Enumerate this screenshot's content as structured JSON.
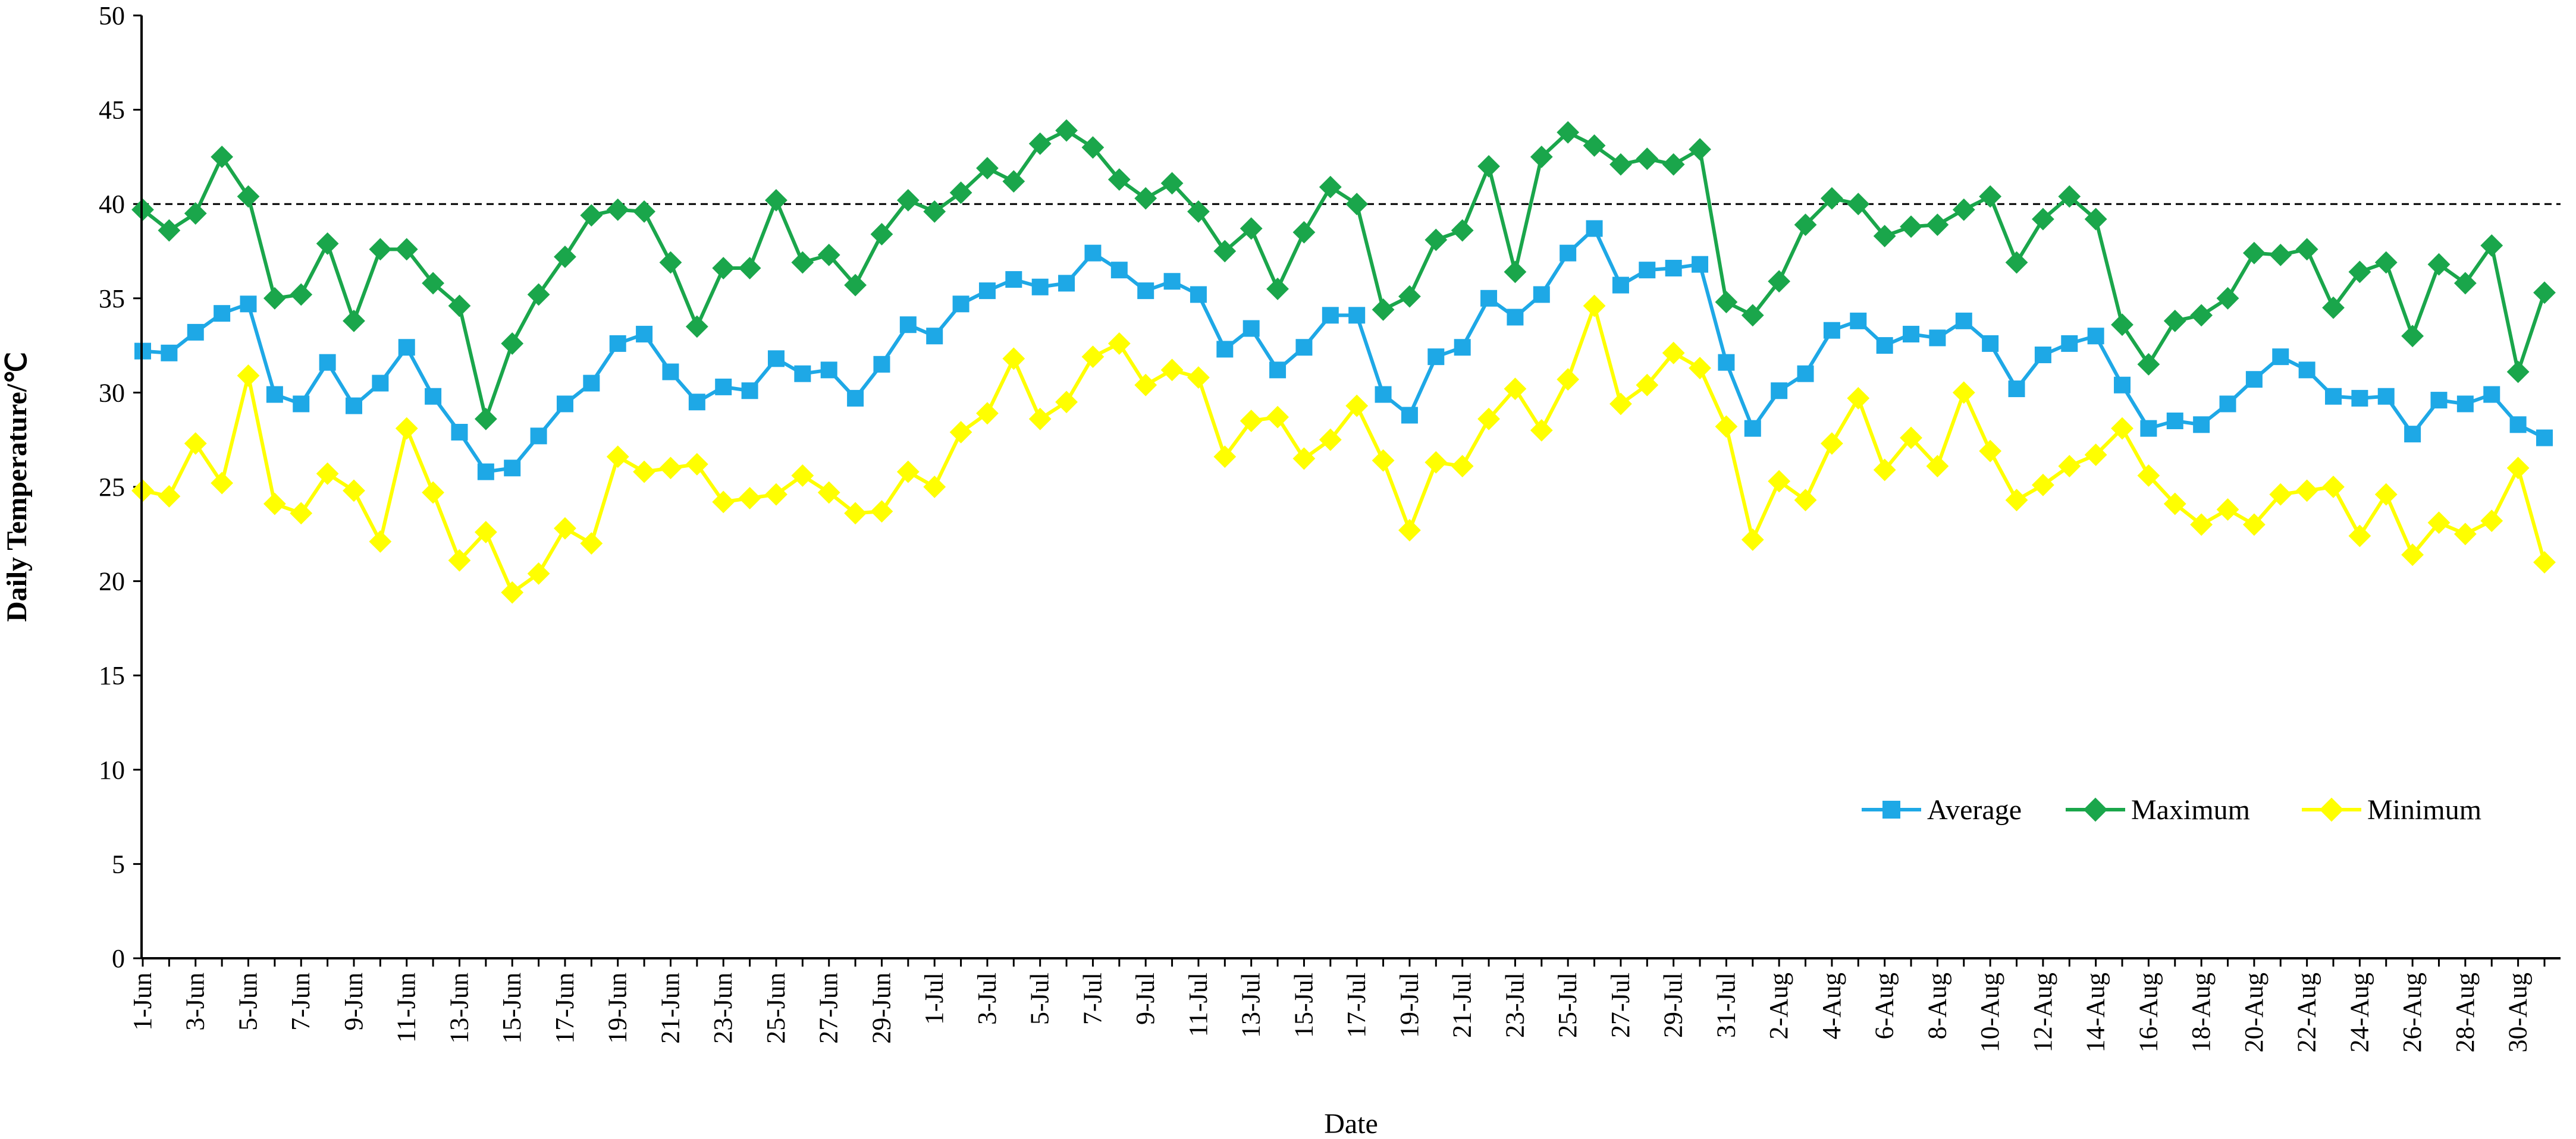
{
  "chart_data": {
    "type": "line",
    "title": "",
    "xlabel": "Date",
    "ylabel": "Daily Temperature/℃",
    "ylim": [
      0,
      50
    ],
    "yticks": [
      0,
      5,
      10,
      15,
      20,
      25,
      30,
      35,
      40,
      45,
      50
    ],
    "grid": false,
    "reference_line": {
      "y": 40,
      "style": "dashed",
      "color": "#000000"
    },
    "legend": {
      "position": "bottom-right",
      "entries": [
        "Average",
        "Maximum",
        "Minimum"
      ]
    },
    "x_label_every": 2,
    "categories": [
      "1-Jun",
      "2-Jun",
      "3-Jun",
      "4-Jun",
      "5-Jun",
      "6-Jun",
      "7-Jun",
      "8-Jun",
      "9-Jun",
      "10-Jun",
      "11-Jun",
      "12-Jun",
      "13-Jun",
      "14-Jun",
      "15-Jun",
      "16-Jun",
      "17-Jun",
      "18-Jun",
      "19-Jun",
      "20-Jun",
      "21-Jun",
      "22-Jun",
      "23-Jun",
      "24-Jun",
      "25-Jun",
      "26-Jun",
      "27-Jun",
      "28-Jun",
      "29-Jun",
      "30-Jun",
      "1-Jul",
      "2-Jul",
      "3-Jul",
      "4-Jul",
      "5-Jul",
      "6-Jul",
      "7-Jul",
      "8-Jul",
      "9-Jul",
      "10-Jul",
      "11-Jul",
      "12-Jul",
      "13-Jul",
      "14-Jul",
      "15-Jul",
      "16-Jul",
      "17-Jul",
      "18-Jul",
      "19-Jul",
      "20-Jul",
      "21-Jul",
      "22-Jul",
      "23-Jul",
      "24-Jul",
      "25-Jul",
      "26-Jul",
      "27-Jul",
      "28-Jul",
      "29-Jul",
      "30-Jul",
      "31-Jul",
      "1-Aug",
      "2-Aug",
      "3-Aug",
      "4-Aug",
      "5-Aug",
      "6-Aug",
      "7-Aug",
      "8-Aug",
      "9-Aug",
      "10-Aug",
      "11-Aug",
      "12-Aug",
      "13-Aug",
      "14-Aug",
      "15-Aug",
      "16-Aug",
      "17-Aug",
      "18-Aug",
      "19-Aug",
      "20-Aug",
      "21-Aug",
      "22-Aug",
      "23-Aug",
      "24-Aug",
      "25-Aug",
      "26-Aug",
      "27-Aug",
      "28-Aug",
      "29-Aug",
      "30-Aug",
      "31-Aug"
    ],
    "series": [
      {
        "name": "Average",
        "color": "#1ea8e6",
        "marker": "square",
        "values": [
          32.2,
          32.1,
          33.2,
          34.2,
          34.7,
          29.9,
          29.4,
          31.6,
          29.3,
          30.5,
          32.4,
          29.8,
          27.9,
          25.8,
          26.0,
          27.7,
          29.4,
          30.5,
          32.6,
          33.1,
          31.1,
          29.5,
          30.3,
          30.1,
          31.8,
          31.0,
          31.2,
          29.7,
          31.5,
          33.6,
          33.0,
          34.7,
          35.4,
          36.0,
          35.6,
          35.8,
          37.4,
          36.5,
          35.4,
          35.9,
          35.2,
          32.3,
          33.4,
          31.2,
          32.4,
          34.1,
          34.1,
          29.9,
          28.8,
          31.9,
          32.4,
          35.0,
          34.0,
          35.2,
          37.4,
          38.7,
          35.7,
          36.5,
          36.6,
          36.8,
          31.6,
          28.1,
          30.1,
          31.0,
          33.3,
          33.8,
          32.5,
          33.1,
          32.9,
          33.8,
          32.6,
          30.2,
          32.0,
          32.6,
          33.0,
          30.4,
          28.1,
          28.5,
          28.3,
          29.4,
          30.7,
          31.9,
          31.2,
          29.8,
          29.7,
          29.8,
          27.8,
          29.6,
          29.4,
          29.9,
          28.3,
          27.6
        ]
      },
      {
        "name": "Maximum",
        "color": "#1aa64b",
        "marker": "diamond",
        "values": [
          39.7,
          38.6,
          39.5,
          42.5,
          40.4,
          35.0,
          35.2,
          37.9,
          33.8,
          37.6,
          37.6,
          35.8,
          34.6,
          28.6,
          32.6,
          35.2,
          37.2,
          39.4,
          39.7,
          39.6,
          36.9,
          33.5,
          36.6,
          36.6,
          40.2,
          36.9,
          37.3,
          35.7,
          38.4,
          40.2,
          39.6,
          40.6,
          41.9,
          41.2,
          43.2,
          43.9,
          43.0,
          41.3,
          40.3,
          41.1,
          39.6,
          37.5,
          38.7,
          35.5,
          38.5,
          40.9,
          40.0,
          34.4,
          35.1,
          38.1,
          38.6,
          42.0,
          36.4,
          42.5,
          43.8,
          43.1,
          42.1,
          42.4,
          42.1,
          42.9,
          34.8,
          34.1,
          35.9,
          38.9,
          40.3,
          40.0,
          38.3,
          38.8,
          38.9,
          39.7,
          40.4,
          36.9,
          39.2,
          40.4,
          39.2,
          33.6,
          31.5,
          33.8,
          34.1,
          35.0,
          37.4,
          37.3,
          37.6,
          34.5,
          36.4,
          36.9,
          33.0,
          36.8,
          35.8,
          37.8,
          31.1,
          35.3
        ]
      },
      {
        "name": "Minimum",
        "color": "#ffff00",
        "marker": "diamond",
        "values": [
          24.8,
          24.5,
          27.3,
          25.2,
          30.9,
          24.1,
          23.6,
          25.7,
          24.8,
          22.1,
          28.1,
          24.7,
          21.1,
          22.6,
          19.4,
          20.4,
          22.8,
          22.0,
          26.6,
          25.8,
          26.0,
          26.2,
          24.2,
          24.4,
          24.6,
          25.6,
          24.7,
          23.6,
          23.7,
          25.8,
          25.0,
          27.9,
          28.9,
          31.8,
          28.6,
          29.5,
          31.9,
          32.6,
          30.4,
          31.2,
          30.8,
          26.6,
          28.5,
          28.7,
          26.5,
          27.5,
          29.3,
          26.4,
          22.7,
          26.3,
          26.1,
          28.6,
          30.2,
          28.0,
          30.7,
          34.6,
          29.4,
          30.4,
          32.1,
          31.3,
          28.2,
          22.2,
          25.3,
          24.3,
          27.3,
          29.7,
          25.9,
          27.6,
          26.1,
          30.0,
          26.9,
          24.3,
          25.1,
          26.1,
          26.7,
          28.1,
          25.6,
          24.1,
          23.0,
          23.8,
          23.0,
          24.6,
          24.8,
          25.0,
          22.4,
          24.6,
          21.4,
          23.1,
          22.5,
          23.2,
          26.0,
          21.0
        ]
      }
    ]
  }
}
